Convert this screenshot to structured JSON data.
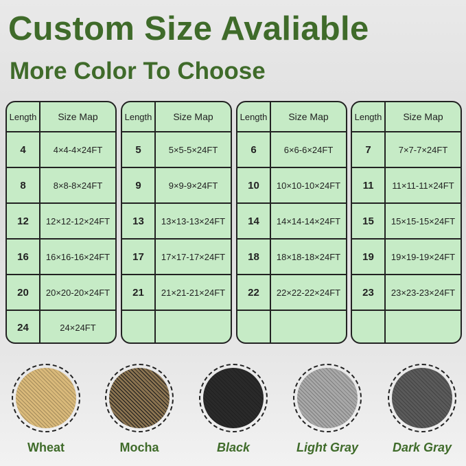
{
  "title": "Custom Size Avaliable",
  "subtitle": "More Color To Choose",
  "table_header": {
    "length": "Length",
    "size_map": "Size Map"
  },
  "tables": [
    [
      [
        "4",
        "4×4-4×24FT"
      ],
      [
        "8",
        "8×8-8×24FT"
      ],
      [
        "12",
        "12×12-12×24FT"
      ],
      [
        "16",
        "16×16-16×24FT"
      ],
      [
        "20",
        "20×20-20×24FT"
      ],
      [
        "24",
        "24×24FT"
      ]
    ],
    [
      [
        "5",
        "5×5-5×24FT"
      ],
      [
        "9",
        "9×9-9×24FT"
      ],
      [
        "13",
        "13×13-13×24FT"
      ],
      [
        "17",
        "17×17-17×24FT"
      ],
      [
        "21",
        "21×21-21×24FT"
      ],
      [
        "",
        ""
      ]
    ],
    [
      [
        "6",
        "6×6-6×24FT"
      ],
      [
        "10",
        "10×10-10×24FT"
      ],
      [
        "14",
        "14×14-14×24FT"
      ],
      [
        "18",
        "18×18-18×24FT"
      ],
      [
        "22",
        "22×22-22×24FT"
      ],
      [
        "",
        ""
      ]
    ],
    [
      [
        "7",
        "7×7-7×24FT"
      ],
      [
        "11",
        "11×11-11×24FT"
      ],
      [
        "15",
        "15×15-15×24FT"
      ],
      [
        "19",
        "19×19-19×24FT"
      ],
      [
        "23",
        "23×23-23×24FT"
      ],
      [
        "",
        ""
      ]
    ]
  ],
  "colors": [
    {
      "label": "Wheat",
      "color": "#d9b97a",
      "italic": false
    },
    {
      "label": "Mocha",
      "color": "#8a7350",
      "italic": false
    },
    {
      "label": "Black",
      "color": "#2a2a2a",
      "italic": true
    },
    {
      "label": "Light Gray",
      "color": "#a8a8a8",
      "italic": true
    },
    {
      "label": "Dark Gray",
      "color": "#5a5a5a",
      "italic": true
    }
  ]
}
